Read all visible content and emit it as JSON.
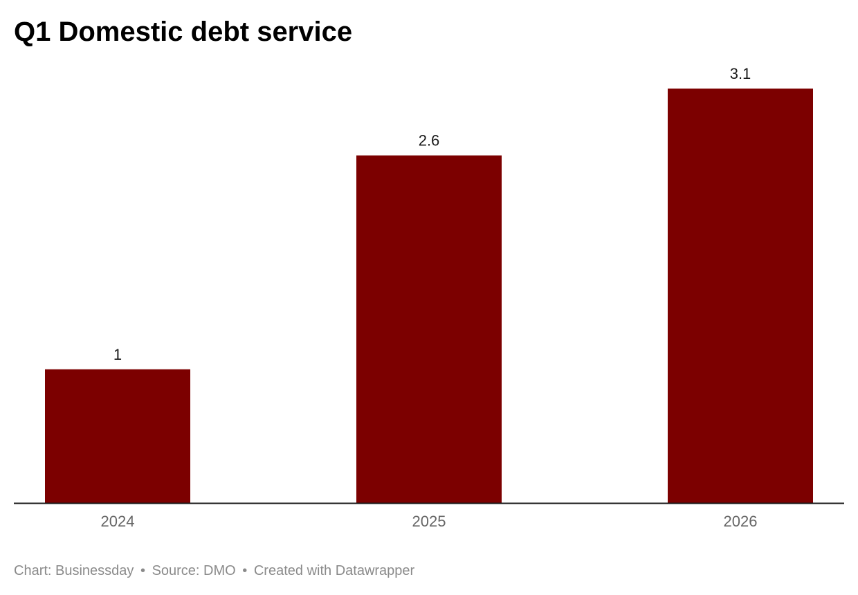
{
  "chart_data": {
    "type": "bar",
    "title": "Q1 Domestic debt service",
    "categories": [
      "2024",
      "2025",
      "2026"
    ],
    "values": [
      1,
      2.6,
      3.1
    ],
    "value_labels": [
      "1",
      "2.6",
      "3.1"
    ],
    "xlabel": "",
    "ylabel": "",
    "ylim": [
      0,
      3.1
    ],
    "grid": false,
    "legend": "none",
    "bar_color": "#7c0000",
    "baseline_color": "#1a1a1a"
  },
  "footer": {
    "chart_credit": "Chart: Businessday",
    "source": "Source: DMO",
    "created_with": "Created with Datawrapper",
    "separator": "•"
  }
}
